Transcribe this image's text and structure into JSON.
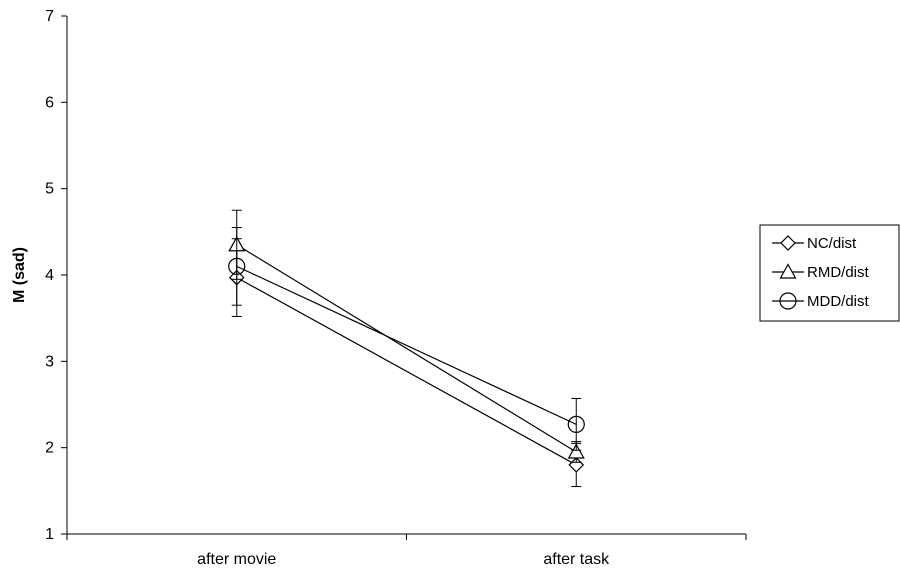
{
  "chart_data": {
    "type": "line",
    "title": "",
    "xlabel": "",
    "ylabel": "M (sad)",
    "ylim": [
      1,
      7
    ],
    "yticks": [
      1,
      2,
      3,
      4,
      5,
      6,
      7
    ],
    "categories": [
      "after movie",
      "after task"
    ],
    "grid": false,
    "legend_position": "right",
    "series": [
      {
        "name": "NC/dist",
        "marker": "diamond",
        "values": [
          3.97,
          1.8
        ],
        "errors": [
          0.45,
          0.25
        ]
      },
      {
        "name": "RMD/dist",
        "marker": "triangle",
        "values": [
          4.35,
          1.95
        ],
        "errors": [
          0.4,
          0.12
        ]
      },
      {
        "name": "MDD/dist",
        "marker": "circle",
        "values": [
          4.1,
          2.27
        ],
        "errors": [
          0.45,
          0.3
        ]
      }
    ]
  }
}
